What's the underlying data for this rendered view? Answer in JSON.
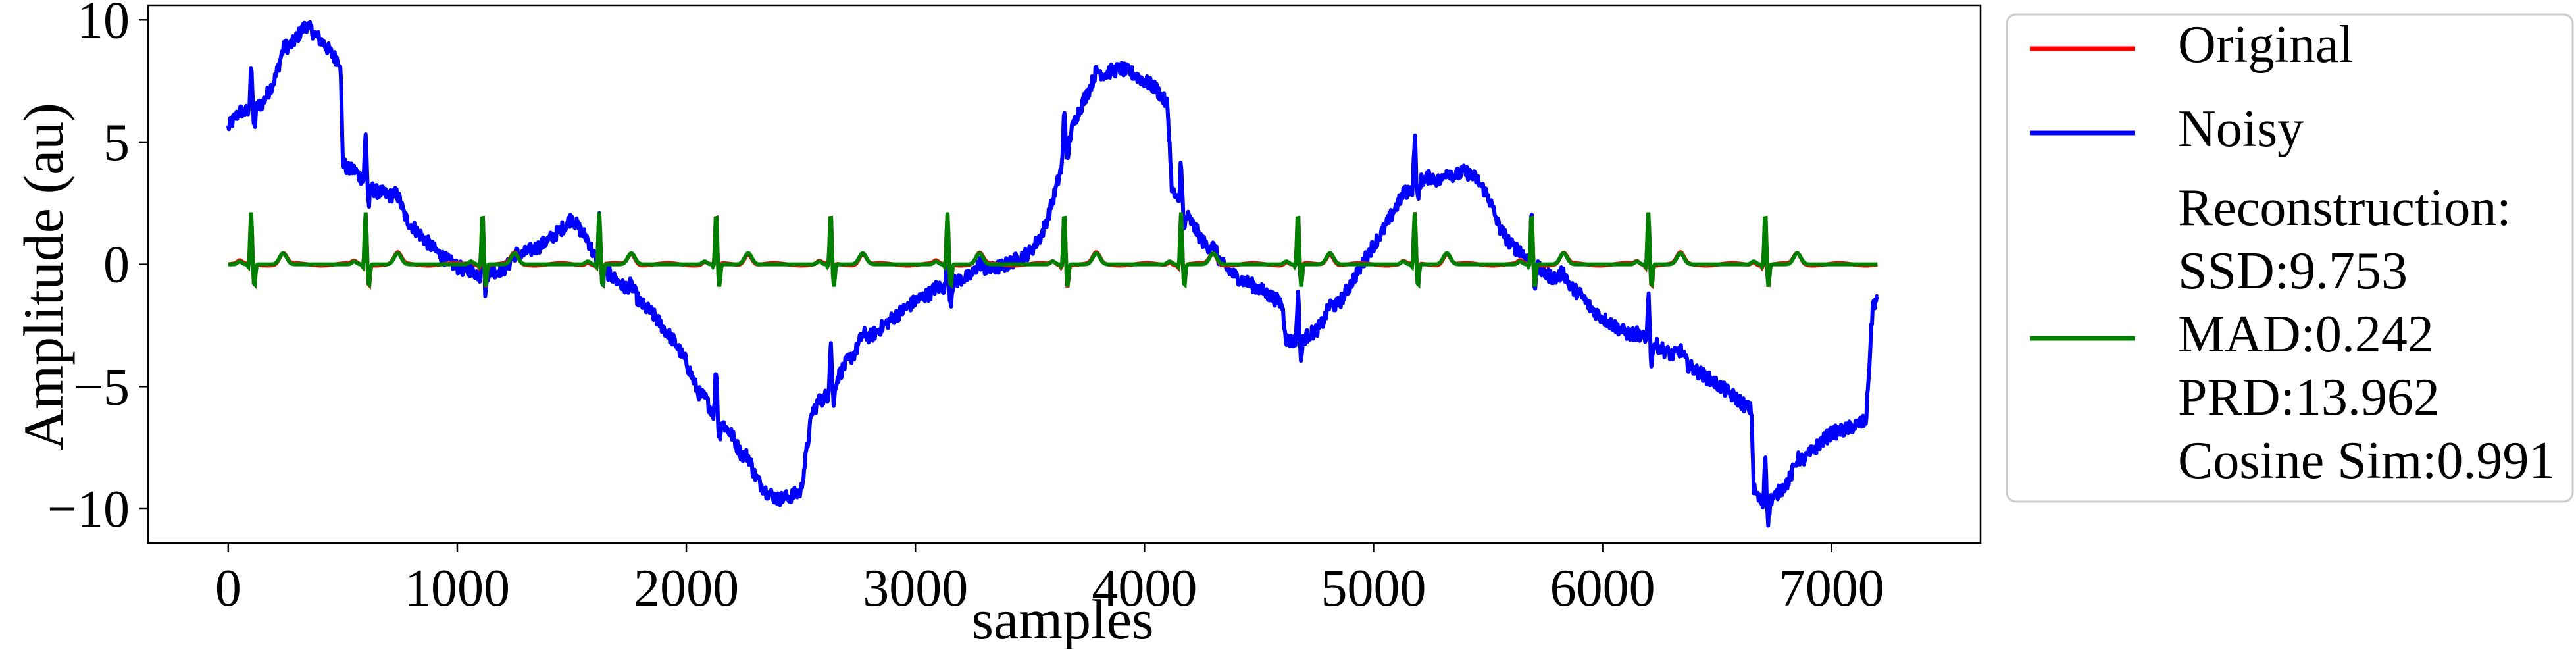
{
  "chart_data": {
    "type": "line",
    "title": "",
    "xlabel": "samples",
    "ylabel": "Amplitude (au)",
    "xlim": [
      -350,
      7650
    ],
    "ylim": [
      -11.4,
      10.6
    ],
    "x_ticks": [
      0,
      1000,
      2000,
      3000,
      4000,
      5000,
      6000,
      7000
    ],
    "y_ticks": [
      -10,
      -5,
      0,
      5,
      10
    ],
    "x_tick_labels": [
      "0",
      "1000",
      "2000",
      "3000",
      "4000",
      "5000",
      "6000",
      "7000"
    ],
    "y_tick_labels": [
      "−10",
      "−5",
      "0",
      "5",
      "10"
    ],
    "grid": false,
    "legend_position": "outside-right",
    "series": [
      {
        "name": "Noisy",
        "color": "#0000ff",
        "x": [
          0,
          30,
          60,
          100,
          150,
          200,
          250,
          300,
          340,
          380,
          420,
          460,
          490,
          500,
          520,
          560,
          600,
          640,
          680,
          720,
          780,
          840,
          900,
          950,
          1000,
          1050,
          1100,
          1150,
          1200,
          1250,
          1300,
          1350,
          1400,
          1450,
          1500,
          1560,
          1600,
          1650,
          1700,
          1750,
          1800,
          1850,
          1900,
          1950,
          2000,
          2050,
          2100,
          2150,
          2200,
          2250,
          2300,
          2350,
          2400,
          2450,
          2500,
          2550,
          2600,
          2650,
          2700,
          2800,
          2900,
          3000,
          3100,
          3200,
          3300,
          3400,
          3500,
          3550,
          3600,
          3650,
          3700,
          3750,
          3800,
          3850,
          3900,
          3950,
          4000,
          4050,
          4100,
          4120,
          4150,
          4200,
          4250,
          4300,
          4400,
          4500,
          4600,
          4620,
          4700,
          4750,
          4800,
          4850,
          4900,
          4950,
          5000,
          5050,
          5100,
          5150,
          5200,
          5250,
          5300,
          5350,
          5400,
          5450,
          5500,
          5550,
          5600,
          5650,
          5700,
          5750,
          5800,
          5850,
          5900,
          5950,
          6000,
          6050,
          6100,
          6200,
          6300,
          6400,
          6500,
          6600,
          6650,
          6660,
          6700,
          6750,
          6800,
          6850,
          6900,
          6950,
          7000,
          7050,
          7100,
          7150,
          7180,
          7200
        ],
        "y": [
          5.6,
          6.0,
          6.2,
          6.3,
          6.6,
          7.5,
          8.6,
          9.3,
          9.8,
          9.4,
          9.0,
          8.5,
          8.3,
          4.2,
          3.9,
          3.7,
          3.4,
          3.0,
          2.9,
          2.7,
          1.8,
          1.2,
          0.6,
          0.2,
          -0.1,
          -0.3,
          -0.4,
          -0.3,
          -0.2,
          0.0,
          0.5,
          0.7,
          1.0,
          1.4,
          1.9,
          1.1,
          0.3,
          -0.3,
          -0.7,
          -1.2,
          -1.6,
          -2.0,
          -2.6,
          -3.2,
          -4.0,
          -5.2,
          -5.8,
          -6.4,
          -7.0,
          -8.0,
          -8.7,
          -9.3,
          -9.6,
          -9.5,
          -9.3,
          -6.0,
          -5.5,
          -4.8,
          -4.0,
          -3.0,
          -2.2,
          -1.5,
          -1.0,
          -0.6,
          -0.3,
          0.0,
          0.5,
          1.2,
          2.5,
          4.5,
          6.0,
          7.0,
          7.6,
          7.9,
          8.0,
          7.8,
          7.5,
          7.2,
          6.5,
          3.0,
          2.5,
          1.8,
          1.0,
          0.3,
          -0.5,
          -1.0,
          -1.6,
          -3.2,
          -3.0,
          -2.7,
          -2.2,
          -1.6,
          -0.8,
          0.0,
          0.8,
          1.5,
          2.4,
          3.0,
          3.4,
          3.6,
          3.3,
          3.6,
          3.8,
          3.5,
          2.8,
          1.5,
          0.8,
          0.4,
          0.0,
          -0.4,
          -0.6,
          -0.9,
          -1.2,
          -1.8,
          -2.2,
          -2.5,
          -2.8,
          -3.1,
          -3.7,
          -4.3,
          -4.9,
          -5.6,
          -6.0,
          -9.3,
          -9.8,
          -9.5,
          -9.0,
          -8.4,
          -7.8,
          -7.3,
          -6.9,
          -6.8,
          -6.6,
          -6.4,
          -1.6,
          -1.5
        ],
        "noise": 0.28
      },
      {
        "name": "Original",
        "color": "#ff0000",
        "beat_starts": [
          10,
          510,
          1020,
          1530,
          2040,
          2540,
          3050,
          3560,
          4070,
          4580,
          5090,
          5600,
          6110,
          6620
        ]
      },
      {
        "name": "Reconstruction:\nSSD:9.753\nMAD:0.242\nPRD:13.962\nCosine Sim:0.991",
        "color": "#008000",
        "beat_starts": [
          10,
          510,
          1020,
          1530,
          2040,
          2540,
          3050,
          3560,
          4070,
          4580,
          5090,
          5600,
          6110,
          6620
        ]
      }
    ],
    "x_range": [
      0,
      7200
    ],
    "beat_r_peak": 2.1,
    "beat_s_trough": -0.9,
    "beat_t_wave": 0.45
  },
  "legend": {
    "entries": [
      {
        "color": "#ff0000",
        "lines": [
          "Original"
        ]
      },
      {
        "color": "#0000ff",
        "lines": [
          "Noisy"
        ]
      },
      {
        "color": "#008000",
        "lines": [
          "Reconstruction:",
          "SSD:9.753",
          "MAD:0.242",
          "PRD:13.962",
          "Cosine Sim:0.991"
        ]
      }
    ]
  }
}
